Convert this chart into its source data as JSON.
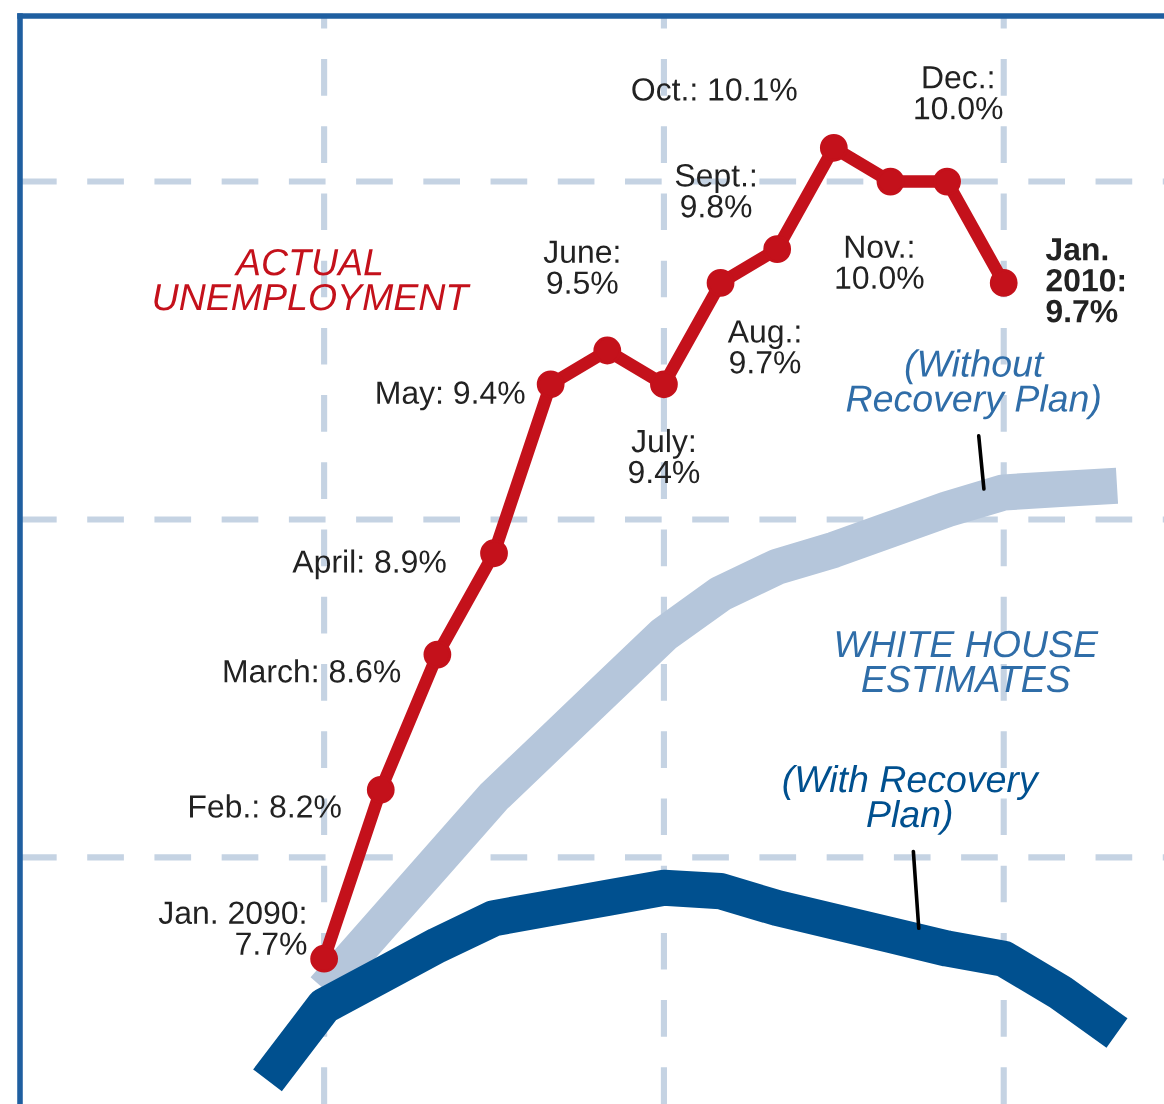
{
  "chart_data": {
    "type": "line",
    "categories": [
      null,
      null,
      null,
      null,
      null,
      null,
      null,
      null,
      null,
      null,
      null,
      null,
      null,
      null,
      null,
      null,
      null,
      null,
      null,
      null
    ],
    "ylim": [
      7.27,
      10.49
    ],
    "yticks": [
      {
        "value": 8,
        "label": null
      },
      {
        "value": 9,
        "label": null
      },
      {
        "value": 10,
        "label": null
      }
    ],
    "grid": true,
    "series": [
      {
        "name": "(Without\nRecovery Plan)",
        "color": "#b5c6db",
        "marker": "none",
        "values": [
          null,
          null,
          null,
          null,
          null,
          7.61,
          7.8,
          7.99,
          8.18,
          8.34,
          8.5,
          8.66,
          8.78,
          8.86,
          8.91,
          8.97,
          9.03,
          9.08,
          9.09,
          9.1
        ]
      },
      {
        "name": "(With Recovery\nPlan)",
        "color": "#00508f",
        "marker": "none",
        "values": [
          null,
          null,
          null,
          null,
          7.34,
          7.56,
          7.65,
          7.74,
          7.82,
          7.85,
          7.88,
          7.91,
          7.9,
          7.85,
          7.81,
          7.77,
          7.73,
          7.7,
          7.6,
          7.48
        ]
      },
      {
        "name": "ACTUAL\nUNEMPLOYMENT",
        "color": "#c4111b",
        "marker": "circle",
        "values": [
          null,
          null,
          null,
          null,
          null,
          7.7,
          8.2,
          8.6,
          8.9,
          9.4,
          9.5,
          9.4,
          9.7,
          9.8,
          10.1,
          10.0,
          10.0,
          9.7,
          null,
          null
        ],
        "value_labels": [
          null,
          null,
          null,
          null,
          null,
          "Jan. 2090:\n7.7%",
          "Feb.: 8.2%",
          "March: 8.6%",
          "April: 8.9%",
          "May: 9.4%",
          "June:\n9.5%",
          "July:\n9.4%",
          "Aug.:\n9.7%",
          "Sept.:\n9.8%",
          "Oct.: 10.1%",
          "Nov.:\n10.0%",
          "Dec.:\n10.0%",
          "Jan.\n2010:\n9.7%",
          null,
          null
        ]
      }
    ],
    "annotations": [
      "WHITE HOUSE\nESTIMATES"
    ]
  }
}
